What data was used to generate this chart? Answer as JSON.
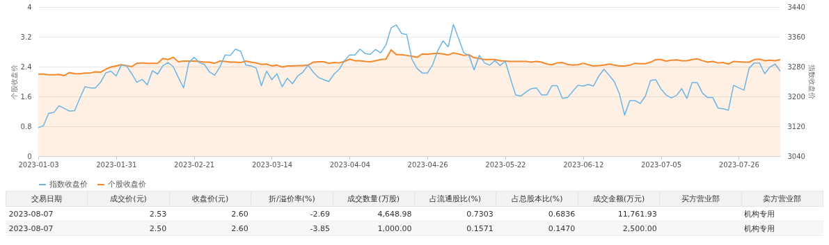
{
  "chart_data": [
    {
      "type": "line",
      "ylabel": "个股收盘价",
      "y2label": "指数收盘价",
      "categories": [
        "2023-01-03",
        null,
        null,
        null,
        null,
        null,
        null,
        null,
        null,
        null,
        null,
        null,
        null,
        null,
        null,
        "2023-01-31",
        null,
        null,
        null,
        null,
        null,
        null,
        null,
        null,
        null,
        null,
        null,
        null,
        null,
        null,
        "2023-02-21",
        null,
        null,
        null,
        null,
        null,
        null,
        null,
        null,
        null,
        null,
        null,
        null,
        null,
        null,
        "2023-03-14",
        null,
        null,
        null,
        null,
        null,
        null,
        null,
        null,
        null,
        null,
        null,
        null,
        null,
        null,
        "2023-04-04",
        null,
        null,
        null,
        null,
        null,
        null,
        null,
        null,
        null,
        null,
        null,
        null,
        null,
        null,
        "2023-04-26",
        null,
        null,
        null,
        null,
        null,
        null,
        null,
        null,
        null,
        null,
        null,
        null,
        null,
        null,
        "2023-05-22",
        null,
        null,
        null,
        null,
        null,
        null,
        null,
        null,
        null,
        null,
        null,
        null,
        null,
        null,
        "2023-06-12",
        null,
        null,
        null,
        null,
        null,
        null,
        null,
        null,
        null,
        null,
        null,
        null,
        null,
        null,
        "2023-07-05",
        null,
        null,
        null,
        null,
        null,
        null,
        null,
        null,
        null,
        null,
        null,
        null,
        null,
        null,
        "2023-07-26",
        null,
        null,
        null,
        null,
        null,
        null,
        null,
        null
      ],
      "series": [
        {
          "name": "指数收盘价",
          "type": "line",
          "axis": "y2",
          "color": "#6cb4e4",
          "values": [
            3116,
            3122,
            3155,
            3157,
            3175,
            3168,
            3161,
            3162,
            3195,
            3226,
            3223,
            3223,
            3238,
            3263,
            3268,
            3255,
            3284,
            3282,
            3261,
            3238,
            3246,
            3231,
            3269,
            3260,
            3282,
            3291,
            3280,
            3251,
            3223,
            3290,
            3305,
            3291,
            3286,
            3266,
            3257,
            3279,
            3311,
            3310,
            3327,
            3321,
            3284,
            3282,
            3276,
            3229,
            3268,
            3245,
            3261,
            3226,
            3249,
            3234,
            3255,
            3265,
            3284,
            3265,
            3251,
            3245,
            3240,
            3260,
            3273,
            3296,
            3311,
            3311,
            3327,
            3315,
            3313,
            3326,
            3317,
            3338,
            3384,
            3392,
            3369,
            3366,
            3300,
            3275,
            3263,
            3263,
            3285,
            3323,
            3349,
            3333,
            3393,
            3356,
            3317,
            3310,
            3271,
            3310,
            3290,
            3284,
            3296,
            3283,
            3294,
            3248,
            3204,
            3201,
            3212,
            3221,
            3223,
            3204,
            3204,
            3229,
            3229,
            3195,
            3197,
            3214,
            3230,
            3228,
            3232,
            3228,
            3254,
            3273,
            3257,
            3240,
            3207,
            3150,
            3189,
            3189,
            3181,
            3201,
            3243,
            3245,
            3220,
            3204,
            3196,
            3203,
            3221,
            3195,
            3237,
            3237,
            3209,
            3197,
            3197,
            3169,
            3167,
            3163,
            3230,
            3223,
            3217,
            3276,
            3290,
            3290,
            3261,
            3279,
            3287,
            3268
          ]
        },
        {
          "name": "个股收盘价",
          "type": "area",
          "color": "#f5882b",
          "values": [
            2.2,
            2.2,
            2.18,
            2.18,
            2.19,
            2.16,
            2.24,
            2.21,
            2.21,
            2.23,
            2.23,
            2.26,
            2.25,
            2.33,
            2.39,
            2.42,
            2.45,
            2.43,
            2.4,
            2.49,
            2.5,
            2.49,
            2.49,
            2.49,
            2.62,
            2.59,
            2.65,
            2.53,
            2.55,
            2.55,
            2.55,
            2.54,
            2.52,
            2.52,
            2.49,
            2.55,
            2.54,
            2.52,
            2.52,
            2.51,
            2.55,
            2.52,
            2.5,
            2.46,
            2.47,
            2.42,
            2.44,
            2.39,
            2.42,
            2.42,
            2.43,
            2.43,
            2.44,
            2.52,
            2.53,
            2.53,
            2.49,
            2.51,
            2.5,
            2.54,
            2.6,
            2.56,
            2.56,
            2.54,
            2.53,
            2.56,
            2.59,
            2.6,
            2.85,
            2.72,
            2.72,
            2.7,
            2.68,
            2.65,
            2.74,
            2.73,
            2.75,
            2.76,
            2.74,
            2.71,
            2.77,
            2.74,
            2.7,
            2.72,
            2.64,
            2.62,
            2.59,
            2.59,
            2.59,
            2.56,
            2.55,
            2.54,
            2.54,
            2.54,
            2.54,
            2.52,
            2.54,
            2.52,
            2.47,
            2.45,
            2.5,
            2.51,
            2.46,
            2.44,
            2.45,
            2.49,
            2.45,
            2.42,
            2.43,
            2.44,
            2.47,
            2.44,
            2.42,
            2.42,
            2.44,
            2.49,
            2.48,
            2.48,
            2.52,
            2.59,
            2.59,
            2.55,
            2.57,
            2.58,
            2.56,
            2.56,
            2.59,
            2.61,
            2.56,
            2.52,
            2.54,
            2.5,
            2.51,
            2.47,
            2.54,
            2.53,
            2.52,
            2.52,
            2.59,
            2.6,
            2.56,
            2.57,
            2.56,
            2.59
          ]
        }
      ],
      "ylim": [
        0,
        4
      ],
      "yticks": [
        0,
        0.8,
        1.6,
        2.4,
        3.2,
        4
      ],
      "y2lim": [
        3040,
        3440
      ],
      "y2ticks": [
        3040,
        3120,
        3200,
        3280,
        3360,
        3440
      ],
      "grid": "y",
      "legend": "bottom"
    },
    {
      "type": "other",
      "categories": [
        "交易日期",
        "成交价(元)",
        "收盘价(元)",
        "折/溢价率(%)",
        "成交数量(万股)",
        "占流通股比(%)",
        "占总股本比(%)",
        "成交金额(万元)",
        "买方营业部",
        "卖方营业部"
      ],
      "annotations": [
        "2023-08-07",
        "2.53",
        "2.60",
        "-2.69",
        "4,648.98",
        "0.7303",
        "0.6836",
        "11,761.93",
        null,
        "机构专用",
        "2023-08-07",
        "2.50",
        "2.60",
        "-3.85",
        "1,000.00",
        "0.1571",
        "0.1470",
        "2,500.00",
        null,
        "机构专用"
      ]
    }
  ]
}
